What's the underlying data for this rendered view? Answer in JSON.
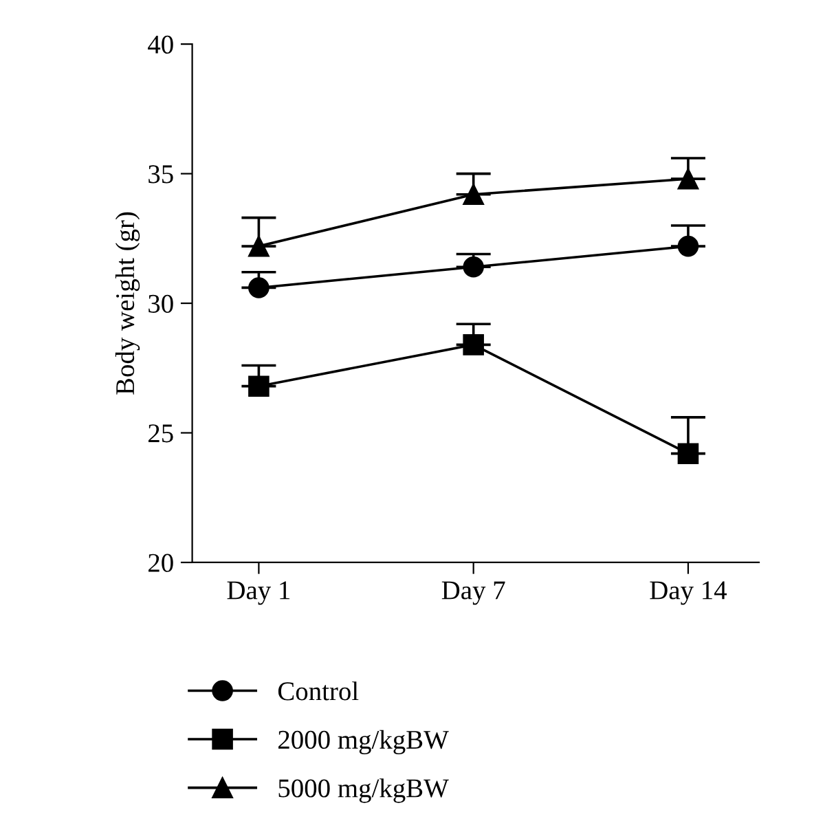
{
  "chart_data": {
    "type": "line",
    "ylabel": "Body weight (gr)",
    "categories": [
      "Day 1",
      "Day 7",
      "Day 14"
    ],
    "series": [
      {
        "name": "Control",
        "color": "#000000",
        "marker": "circle",
        "values": [
          30.6,
          31.4,
          32.2
        ],
        "errors": [
          [
            30.6,
            31.2
          ],
          [
            31.4,
            31.9
          ],
          [
            32.2,
            33.0
          ]
        ]
      },
      {
        "name": "2000 mg/kgBW",
        "color": "#000000",
        "marker": "square",
        "values": [
          26.8,
          28.4,
          24.2
        ],
        "errors": [
          [
            26.8,
            27.6
          ],
          [
            28.4,
            29.2
          ],
          [
            24.2,
            25.6
          ]
        ]
      },
      {
        "name": "5000 mg/kgBW",
        "color": "#000000",
        "marker": "triangle",
        "values": [
          32.2,
          34.2,
          34.8
        ],
        "errors": [
          [
            32.2,
            33.3
          ],
          [
            34.2,
            35.0
          ],
          [
            34.8,
            35.6
          ]
        ]
      }
    ],
    "ylim": [
      20,
      40
    ],
    "yticks": [
      20,
      25,
      30,
      35,
      40
    ],
    "grid": false,
    "legend": "bottom left",
    "line_style": "solid"
  }
}
